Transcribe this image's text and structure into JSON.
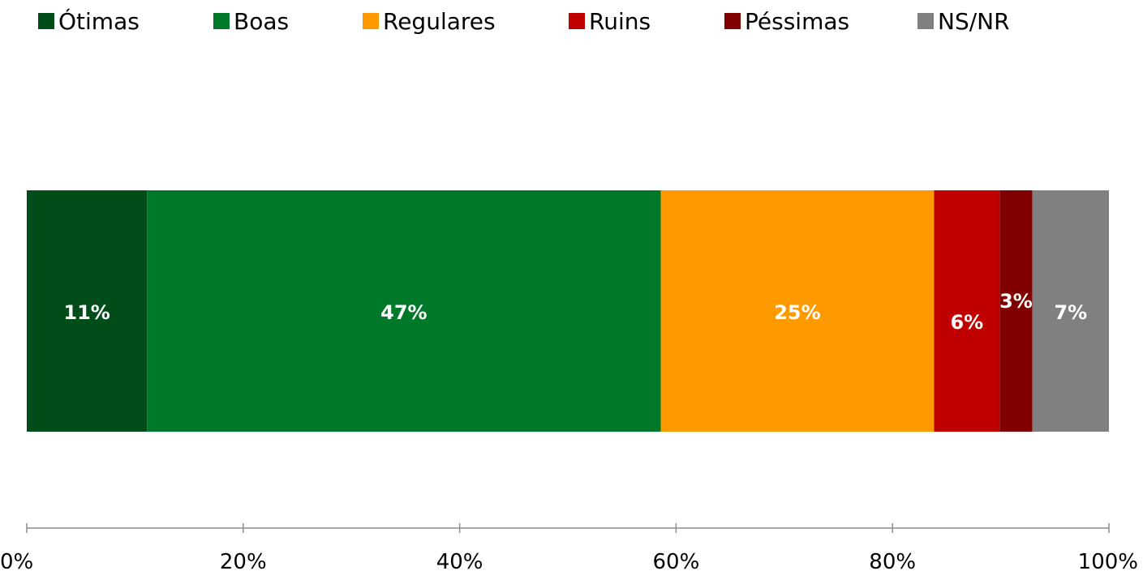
{
  "chart_data": {
    "type": "bar",
    "orientation": "horizontal",
    "stacked": true,
    "title": "",
    "xlabel": "",
    "ylabel": "",
    "xlim": [
      0,
      100
    ],
    "grid": false,
    "legend_position": "top",
    "series": [
      {
        "name": "Ótimas",
        "values": [
          11
        ],
        "label": "11%",
        "color": "#004D1A"
      },
      {
        "name": "Boas",
        "values": [
          47
        ],
        "label": "47%",
        "color": "#00782A"
      },
      {
        "name": "Regulares",
        "values": [
          25
        ],
        "label": "25%",
        "color": "#FF9900"
      },
      {
        "name": "Ruins",
        "values": [
          6
        ],
        "label": "6%",
        "color": "#C00000"
      },
      {
        "name": "Péssimas",
        "values": [
          3
        ],
        "label": "3%",
        "color": "#800000"
      },
      {
        "name": "NS/NR",
        "values": [
          7
        ],
        "label": "7%",
        "color": "#808080"
      }
    ],
    "x_ticks": [
      "0%",
      "20%",
      "40%",
      "60%",
      "80%",
      "100%"
    ]
  }
}
